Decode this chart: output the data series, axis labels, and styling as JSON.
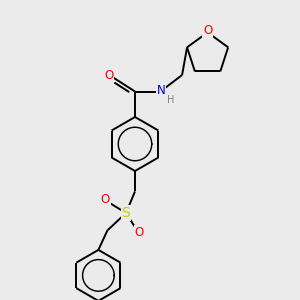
{
  "background_color": "#ebebeb",
  "bond_color": "#000000",
  "atom_colors": {
    "O": "#ff0000",
    "N": "#0000cd",
    "S": "#cccc00",
    "H": "#7f7f7f",
    "C": "#000000"
  },
  "figsize": [
    3.0,
    3.0
  ],
  "dpi": 100
}
